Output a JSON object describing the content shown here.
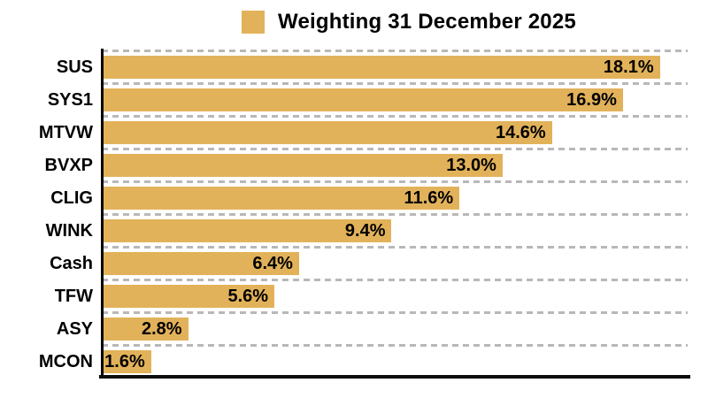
{
  "chart_data": {
    "type": "bar",
    "orientation": "horizontal",
    "title": "Weighting 31 December 2025",
    "categories": [
      "SUS",
      "SYS1",
      "MTVW",
      "BVXP",
      "CLIG",
      "WINK",
      "Cash",
      "TFW",
      "ASY",
      "MCON"
    ],
    "values": [
      18.1,
      16.9,
      14.6,
      13.0,
      11.6,
      9.4,
      6.4,
      5.6,
      2.8,
      1.6
    ],
    "value_labels": [
      "18.1%",
      "16.9%",
      "14.6%",
      "13.0%",
      "11.6%",
      "9.4%",
      "6.4%",
      "5.6%",
      "2.8%",
      "1.6%"
    ],
    "xlabel": "",
    "ylabel": "",
    "xlim": [
      0,
      19
    ],
    "grid": "horizontal dashed row separators",
    "legend_position": "top-center",
    "colors": {
      "bar": "#E2B25A",
      "gridline": "#B8B8B8",
      "axis": "#000000",
      "text": "#000000",
      "background": "#FFFFFF"
    }
  }
}
